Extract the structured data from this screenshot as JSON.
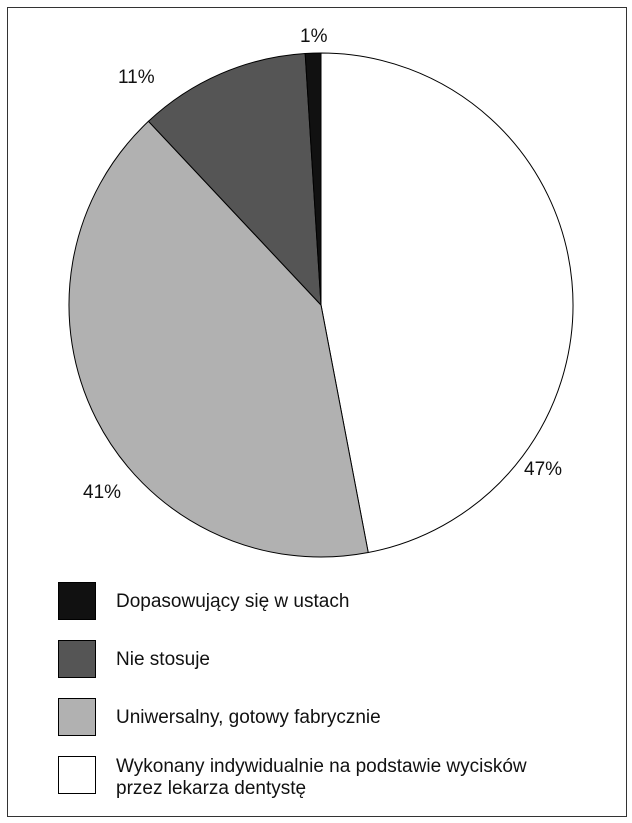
{
  "chart_data": {
    "type": "pie",
    "title": "",
    "slices": [
      {
        "name": "Wykonany indywidualnie na podstawie wycisków przez lekarza dentystę",
        "value": 47,
        "label": "47%",
        "color": "#ffffff"
      },
      {
        "name": "Uniwersalny, gotowy fabrycznie",
        "value": 41,
        "label": "41%",
        "color": "#b1b1b1"
      },
      {
        "name": "Nie stosuje",
        "value": 11,
        "label": "11%",
        "color": "#555555"
      },
      {
        "name": "Dopasowujący się w ustach",
        "value": 1,
        "label": "1%",
        "color": "#111111"
      }
    ],
    "start": "12 o'clock",
    "direction": "clockwise",
    "legend_position": "bottom"
  },
  "legend": {
    "items": [
      {
        "label": "Dopasowujący się w ustach",
        "color": "#111111"
      },
      {
        "label": "Nie stosuje",
        "color": "#555555"
      },
      {
        "label": "Uniwersalny, gotowy fabrycznie",
        "color": "#b1b1b1"
      },
      {
        "label": "Wykonany indywidualnie na podstawie wycisków przez lekarza dentystę",
        "color": "#ffffff"
      }
    ]
  }
}
